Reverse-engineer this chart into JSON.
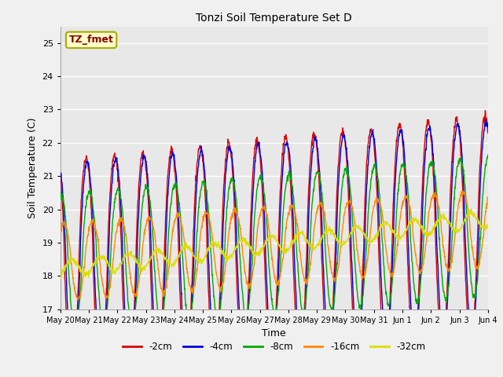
{
  "title": "Tonzi Soil Temperature Set D",
  "xlabel": "Time",
  "ylabel": "Soil Temperature (C)",
  "ylim": [
    17.0,
    25.5
  ],
  "yticks": [
    17.0,
    18.0,
    19.0,
    20.0,
    21.0,
    22.0,
    23.0,
    24.0,
    25.0
  ],
  "plot_bg_color": "#e8e8e8",
  "fig_bg_color": "#f0f0f0",
  "annotation_text": "TZ_fmet",
  "annotation_bg": "#ffffcc",
  "annotation_border": "#aaaa00",
  "series_colors": [
    "#dd0000",
    "#0000dd",
    "#00aa00",
    "#ff8800",
    "#dddd00"
  ],
  "series_labels": [
    "-2cm",
    "-4cm",
    "-8cm",
    "-16cm",
    "-32cm"
  ],
  "xtick_labels": [
    "May 20",
    "May 21",
    "May 22",
    "May 23",
    "May 24",
    "May 25",
    "May 26",
    "May 27",
    "May 28",
    "May 29",
    "May 30",
    "May 31",
    "Jun 1",
    "Jun 2",
    "Jun 3",
    "Jun 4"
  ],
  "n_points": 1440,
  "n_days": 15
}
